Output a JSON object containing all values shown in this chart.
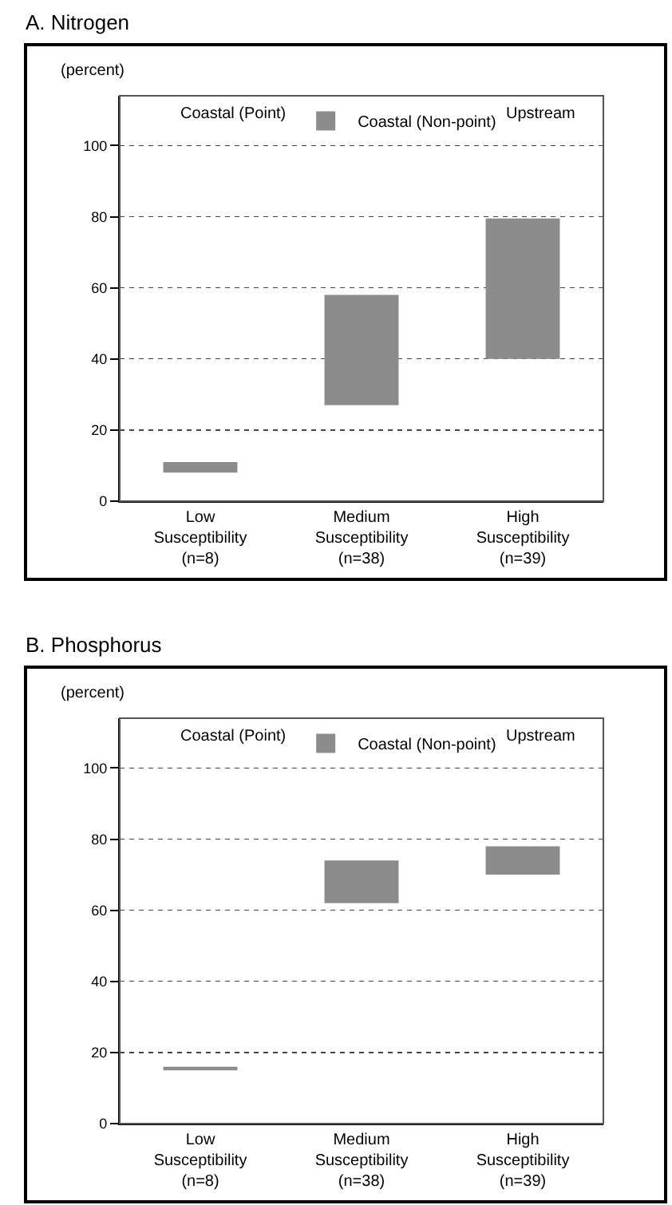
{
  "chart_data": [
    {
      "type": "bar",
      "title": "A. Nitrogen",
      "ylabel": "(percent)",
      "annotations": [
        "Coastal (Point)",
        "Upstream"
      ],
      "categories": [
        "Low Susceptibility (n=8)",
        "Medium Susceptibility (n=38)",
        "High Susceptibility (n=39)"
      ],
      "series": [
        {
          "name": "Coastal (Non-point)",
          "color": "#8c8c8c",
          "values": [
            3,
            31,
            39.5
          ],
          "base": [
            8,
            27,
            40
          ]
        }
      ],
      "ylim": [
        0,
        114
      ],
      "yticks": [
        0,
        20,
        40,
        60,
        80,
        100
      ],
      "grid": "y",
      "legend": "top"
    },
    {
      "type": "bar",
      "title": "B. Phosphorus",
      "ylabel": "(percent)",
      "annotations": [
        "Coastal (Point)",
        "Upstream"
      ],
      "categories": [
        "Low Susceptibility (n=8)",
        "Medium Susceptibility (n=38)",
        "High Susceptibility (n=39)"
      ],
      "series": [
        {
          "name": "Coastal (Non-point)",
          "color": "#8c8c8c",
          "values": [
            1,
            12,
            8
          ],
          "base": [
            15,
            62,
            70
          ]
        }
      ],
      "ylim": [
        0,
        114
      ],
      "yticks": [
        0,
        20,
        40,
        60,
        80,
        100
      ],
      "grid": "y",
      "legend": "top"
    }
  ]
}
